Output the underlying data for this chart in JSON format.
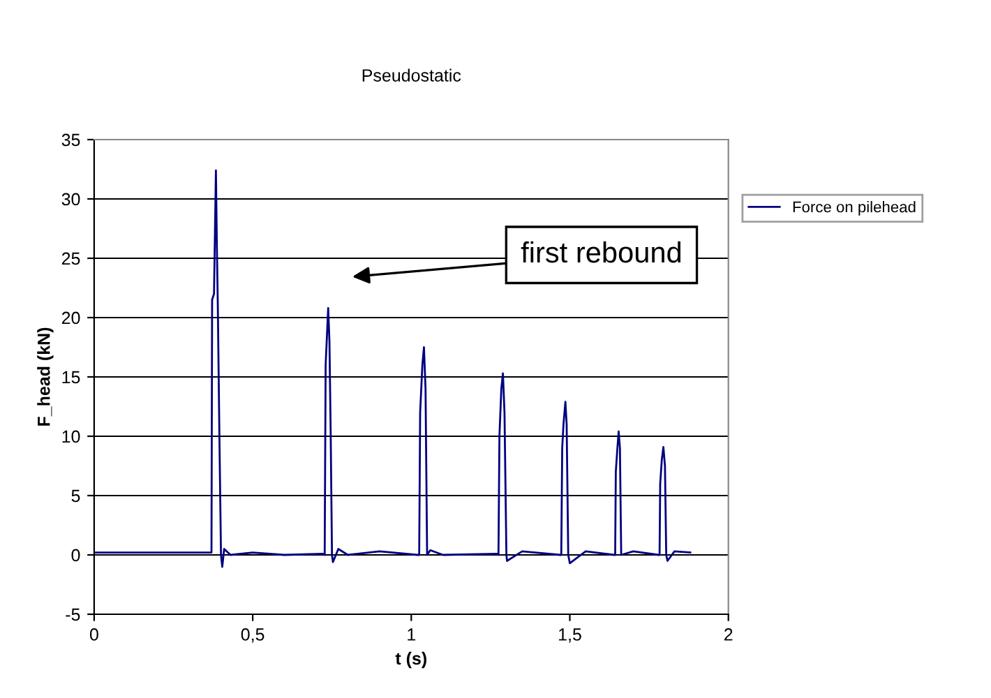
{
  "chart_data": {
    "type": "line",
    "title": "Pseudostatic",
    "xlabel": "t (s)",
    "ylabel": "F_head (kN)",
    "xlim": [
      0,
      2
    ],
    "xticks": [
      0,
      {
        "value": 0.5,
        "label": "0,5"
      },
      1,
      {
        "value": 1.5,
        "label": "1,5"
      },
      2
    ],
    "ylim": [
      -5,
      35
    ],
    "yticks": [
      -5,
      0,
      5,
      10,
      15,
      20,
      25,
      30,
      35
    ],
    "grid": "y",
    "legend": "right",
    "marker": "none",
    "line_style": "solid",
    "annotations": [
      "first rebound"
    ],
    "series": [
      {
        "name": "Force on pilehead",
        "color": "#000080",
        "x": [
          0,
          0.37,
          0.372,
          0.378,
          0.384,
          0.387,
          0.39,
          0.395,
          0.4,
          0.404,
          0.41,
          0.43,
          0.5,
          0.6,
          0.72,
          0.727,
          0.73,
          0.738,
          0.742,
          0.746,
          0.75,
          0.753,
          0.77,
          0.8,
          0.9,
          1.02,
          1.025,
          1.028,
          1.035,
          1.04,
          1.045,
          1.05,
          1.06,
          1.1,
          1.27,
          1.275,
          1.278,
          1.284,
          1.289,
          1.294,
          1.3,
          1.302,
          1.35,
          1.47,
          1.473,
          1.476,
          1.48,
          1.486,
          1.49,
          1.495,
          1.5,
          1.55,
          1.64,
          1.643,
          1.645,
          1.65,
          1.654,
          1.658,
          1.662,
          1.7,
          1.78,
          1.783,
          1.785,
          1.79,
          1.795,
          1.8,
          1.804,
          1.808,
          1.83,
          1.88
        ],
        "values": [
          0.2,
          0.2,
          21.5,
          22,
          32.4,
          26,
          21,
          10,
          0,
          -1,
          0.5,
          0,
          0.2,
          0,
          0.1,
          0,
          16,
          20.8,
          18,
          10,
          0,
          -0.6,
          0.5,
          0,
          0.3,
          0,
          0,
          12,
          16,
          17.5,
          14,
          0,
          0.4,
          0,
          0.1,
          0,
          10,
          14,
          15.3,
          12,
          0,
          -0.5,
          0.3,
          0,
          0,
          9,
          11,
          12.9,
          11,
          0,
          -0.7,
          0.3,
          0,
          0,
          7,
          9,
          10.4,
          9,
          0,
          0.3,
          0,
          0,
          6,
          8,
          9.1,
          7.5,
          0,
          -0.5,
          0.3,
          0.2
        ]
      }
    ]
  }
}
